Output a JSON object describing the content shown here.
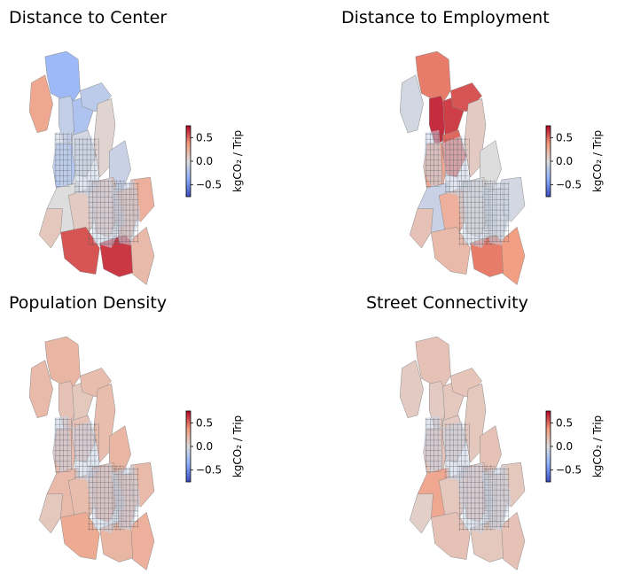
{
  "colors": {
    "cold": "#3b4cc0",
    "neutral": "#dddddd",
    "hot": "#b40426",
    "boundary": "#8a8a8a"
  },
  "colorbar": {
    "tick_labels": [
      "0.5",
      "0.0",
      "−0.5"
    ],
    "tick_values": [
      0.5,
      0.0,
      -0.5
    ],
    "range": [
      -0.75,
      0.75
    ],
    "label": "kgCO₂ / Trip"
  },
  "maps": [
    {
      "title": "Distance to Center",
      "region_values": [
        -0.3,
        -0.12,
        -0.22,
        -0.15,
        -0.2,
        -0.05,
        0.05,
        -0.1,
        0.0,
        0.1,
        0.15,
        0.22,
        0.25,
        0.55,
        0.62,
        0.2,
        0.12,
        0.3
      ]
    },
    {
      "title": "Distance to Employment",
      "region_values": [
        0.45,
        0.65,
        0.6,
        0.55,
        0.3,
        0.5,
        0.1,
        0.0,
        -0.1,
        0.25,
        0.05,
        0.0,
        -0.05,
        0.2,
        0.45,
        0.35,
        0.15,
        -0.05
      ]
    },
    {
      "title": "Population Density",
      "region_values": [
        0.22,
        0.15,
        0.12,
        0.18,
        0.2,
        0.15,
        0.18,
        0.22,
        0.2,
        0.18,
        0.25,
        0.22,
        0.2,
        0.28,
        0.22,
        0.25,
        0.12,
        0.2
      ]
    },
    {
      "title": "Street Connectivity",
      "region_values": [
        0.15,
        0.1,
        0.12,
        0.14,
        0.15,
        0.1,
        0.12,
        0.15,
        0.3,
        0.12,
        0.15,
        0.1,
        0.12,
        0.15,
        0.12,
        0.15,
        0.08,
        0.1
      ]
    }
  ]
}
